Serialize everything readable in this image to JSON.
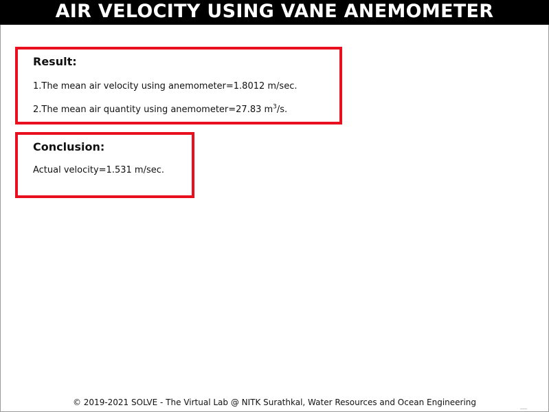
{
  "header": {
    "title": "AIR VELOCITY USING VANE ANEMOMETER"
  },
  "result": {
    "heading": "Result:",
    "line1": "1.The mean air velocity using anemometer=1.8012 m/sec.",
    "line2_prefix": "2.The mean air quantity using anemometer=27.83 m",
    "line2_sup": "3",
    "line2_suffix": "/s."
  },
  "conclusion": {
    "heading": "Conclusion:",
    "line1": "Actual velocity=1.531 m/sec."
  },
  "footer": {
    "text": "© 2019-2021 SOLVE - The Virtual Lab @ NITK Surathkal, Water Resources and Ocean Engineering"
  }
}
